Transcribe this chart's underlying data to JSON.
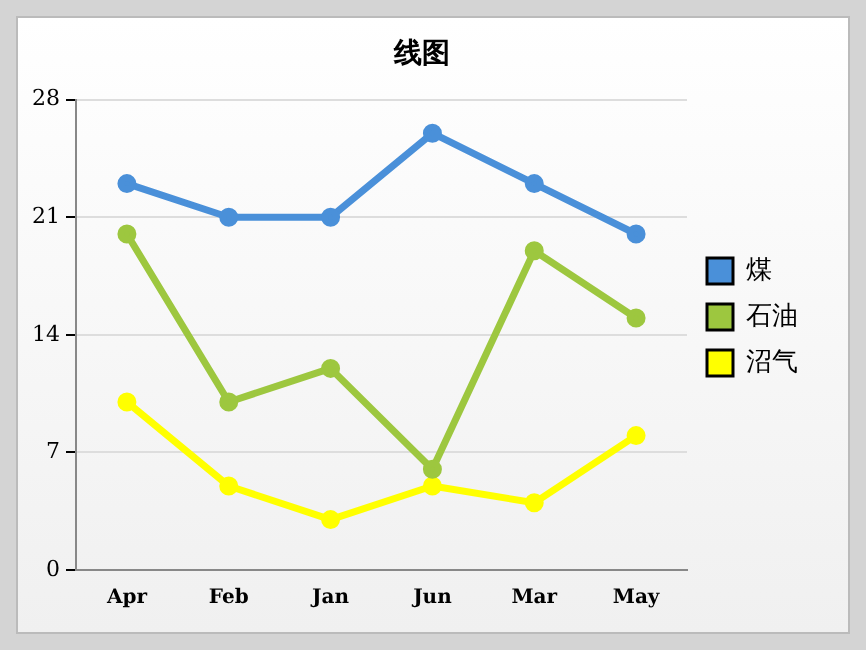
{
  "chart_data": {
    "type": "line",
    "title": "线图",
    "categories": [
      "Apr",
      "Feb",
      "Jan",
      "Jun",
      "Mar",
      "May"
    ],
    "series": [
      {
        "name": "煤",
        "color": "#4a90d9",
        "values": [
          23,
          21,
          21,
          26,
          23,
          20
        ]
      },
      {
        "name": "石油",
        "color": "#9dc73f",
        "values": [
          20,
          10,
          12,
          6,
          19,
          15
        ]
      },
      {
        "name": "沼气",
        "color": "#ffff00",
        "values": [
          10,
          5,
          3,
          5,
          4,
          8
        ]
      }
    ],
    "ylim": [
      0,
      28
    ],
    "yticks": [
      0,
      7,
      14,
      21,
      28
    ],
    "grid": "y",
    "legend": "right",
    "marker": "circle",
    "line_style": "solid"
  }
}
